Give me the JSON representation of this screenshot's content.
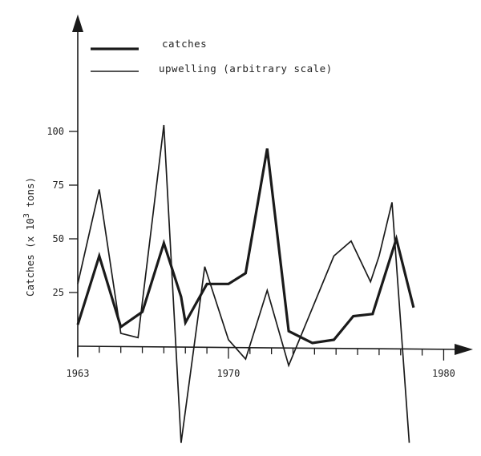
{
  "chart_data": {
    "type": "line",
    "title": "",
    "xlabel": "",
    "ylabel": "Catches (x 10^3 tons)",
    "ylabel_base": "Catches (x 10",
    "ylabel_exp": "3",
    "ylabel_tail": " tons)",
    "xlim": [
      1963,
      1981
    ],
    "ylim": [
      -45,
      125
    ],
    "x_ticks": [
      1963,
      1964,
      1965,
      1966,
      1967,
      1968,
      1969,
      1970,
      1971,
      1972,
      1973,
      1974,
      1975,
      1976,
      1977,
      1978,
      1979,
      1980
    ],
    "x_tick_labels": [
      {
        "year": 1963,
        "label": "1963"
      },
      {
        "year": 1970,
        "label": "1970"
      },
      {
        "year": 1980,
        "label": "1980"
      }
    ],
    "y_ticks": [
      {
        "value": 25,
        "label": "25"
      },
      {
        "value": 50,
        "label": "50"
      },
      {
        "value": 75,
        "label": "75"
      },
      {
        "value": 100,
        "label": "100"
      }
    ],
    "grid": false,
    "legend_position": "top-left",
    "series": [
      {
        "name": "catches",
        "style": "thick",
        "points": [
          [
            1963.0,
            10
          ],
          [
            1964.0,
            42
          ],
          [
            1965.0,
            9
          ],
          [
            1966.0,
            16
          ],
          [
            1967.0,
            48
          ],
          [
            1967.8,
            23
          ],
          [
            1968.0,
            11
          ],
          [
            1969.0,
            29
          ],
          [
            1970.0,
            29
          ],
          [
            1970.8,
            34
          ],
          [
            1971.8,
            92
          ],
          [
            1972.8,
            7
          ],
          [
            1973.9,
            1.5
          ],
          [
            1974.9,
            3
          ],
          [
            1975.8,
            14
          ],
          [
            1976.7,
            15
          ],
          [
            1977.8,
            50
          ],
          [
            1978.6,
            18
          ]
        ]
      },
      {
        "name": "upwelling (arbitrary scale)",
        "style": "thin",
        "points": [
          [
            1963.0,
            29
          ],
          [
            1964.0,
            73
          ],
          [
            1965.0,
            6
          ],
          [
            1965.8,
            4
          ],
          [
            1967.0,
            103
          ],
          [
            1967.8,
            -45
          ],
          [
            1968.9,
            37
          ],
          [
            1970.0,
            3
          ],
          [
            1970.8,
            -6
          ],
          [
            1971.8,
            26
          ],
          [
            1972.8,
            -9
          ],
          [
            1974.9,
            42
          ],
          [
            1975.7,
            49
          ],
          [
            1976.6,
            30
          ],
          [
            1977.0,
            42
          ],
          [
            1977.6,
            67
          ],
          [
            1978.4,
            -45
          ]
        ]
      }
    ]
  },
  "legend": [
    {
      "label": "catches",
      "style": "thick"
    },
    {
      "label": "upwelling (arbitrary scale)",
      "style": "thin"
    }
  ],
  "colors": {
    "ink": "#1a1a1a",
    "background": "#ffffff"
  }
}
